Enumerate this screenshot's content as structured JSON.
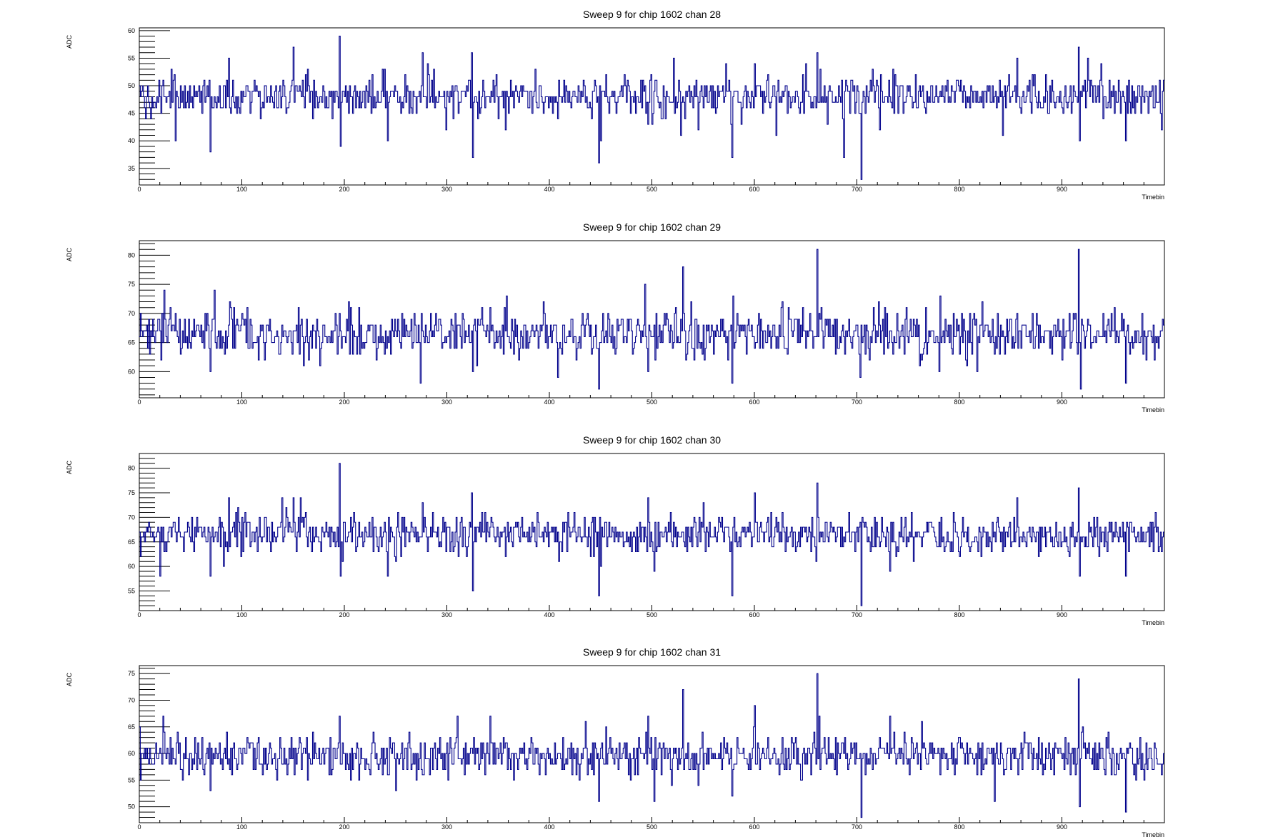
{
  "chart_data": [
    {
      "type": "line",
      "step": true,
      "title": "Sweep 9 for chip 1602 chan 28",
      "xlabel": "Timebin",
      "ylabel": "ADC",
      "xlim": [
        0,
        1000
      ],
      "ylim": [
        32,
        60.5
      ],
      "xticks": [
        "0",
        "100",
        "200",
        "300",
        "400",
        "500",
        "600",
        "700",
        "800",
        "900"
      ],
      "yticks": [
        "35",
        "40",
        "45",
        "50",
        "55",
        "60"
      ],
      "baseline": 48,
      "noise": 1.6,
      "spikes": [
        {
          "x": 69,
          "y": 38
        },
        {
          "x": 87,
          "y": 55
        },
        {
          "x": 150,
          "y": 57
        },
        {
          "x": 195,
          "y": 59
        },
        {
          "x": 196,
          "y": 39
        },
        {
          "x": 242,
          "y": 40
        },
        {
          "x": 276,
          "y": 56
        },
        {
          "x": 324,
          "y": 56
        },
        {
          "x": 325,
          "y": 37
        },
        {
          "x": 448,
          "y": 36
        },
        {
          "x": 450,
          "y": 40
        },
        {
          "x": 521,
          "y": 55
        },
        {
          "x": 578,
          "y": 37
        },
        {
          "x": 600,
          "y": 54
        },
        {
          "x": 661,
          "y": 56
        },
        {
          "x": 687,
          "y": 37
        },
        {
          "x": 704,
          "y": 33
        },
        {
          "x": 735,
          "y": 53
        },
        {
          "x": 842,
          "y": 41
        },
        {
          "x": 856,
          "y": 55
        },
        {
          "x": 916,
          "y": 57
        },
        {
          "x": 917,
          "y": 40
        },
        {
          "x": 962,
          "y": 40
        }
      ]
    },
    {
      "type": "line",
      "step": true,
      "title": "Sweep 9 for chip 1602 chan 29",
      "xlabel": "Timebin",
      "ylabel": "ADC",
      "xlim": [
        0,
        1000
      ],
      "ylim": [
        55.5,
        82.5
      ],
      "xticks": [
        "0",
        "100",
        "200",
        "300",
        "400",
        "500",
        "600",
        "700",
        "800",
        "900"
      ],
      "yticks": [
        "60",
        "65",
        "70",
        "75",
        "80"
      ],
      "baseline": 66.5,
      "noise": 1.9,
      "spikes": [
        {
          "x": 10,
          "y": 63
        },
        {
          "x": 24,
          "y": 74
        },
        {
          "x": 69,
          "y": 60
        },
        {
          "x": 88,
          "y": 72
        },
        {
          "x": 160,
          "y": 61
        },
        {
          "x": 204,
          "y": 72
        },
        {
          "x": 274,
          "y": 58
        },
        {
          "x": 325,
          "y": 60
        },
        {
          "x": 342,
          "y": 71
        },
        {
          "x": 408,
          "y": 59
        },
        {
          "x": 448,
          "y": 57
        },
        {
          "x": 493,
          "y": 75
        },
        {
          "x": 496,
          "y": 60
        },
        {
          "x": 530,
          "y": 78
        },
        {
          "x": 578,
          "y": 58
        },
        {
          "x": 661,
          "y": 81
        },
        {
          "x": 703,
          "y": 59
        },
        {
          "x": 721,
          "y": 72
        },
        {
          "x": 781,
          "y": 73
        },
        {
          "x": 834,
          "y": 63
        },
        {
          "x": 916,
          "y": 81
        },
        {
          "x": 918,
          "y": 57
        },
        {
          "x": 962,
          "y": 58
        }
      ]
    },
    {
      "type": "line",
      "step": true,
      "title": "Sweep 9 for chip 1602 chan 30",
      "xlabel": "Timebin",
      "ylabel": "ADC",
      "xlim": [
        0,
        1000
      ],
      "ylim": [
        51,
        83
      ],
      "xticks": [
        "0",
        "100",
        "200",
        "300",
        "400",
        "500",
        "600",
        "700",
        "800",
        "900"
      ],
      "yticks": [
        "55",
        "60",
        "65",
        "70",
        "75",
        "80"
      ],
      "baseline": 66.5,
      "noise": 1.9,
      "spikes": [
        {
          "x": 69,
          "y": 58
        },
        {
          "x": 87,
          "y": 74
        },
        {
          "x": 150,
          "y": 74
        },
        {
          "x": 195,
          "y": 81
        },
        {
          "x": 196,
          "y": 58
        },
        {
          "x": 242,
          "y": 58
        },
        {
          "x": 276,
          "y": 73
        },
        {
          "x": 324,
          "y": 75
        },
        {
          "x": 325,
          "y": 55
        },
        {
          "x": 448,
          "y": 54
        },
        {
          "x": 450,
          "y": 60
        },
        {
          "x": 496,
          "y": 74
        },
        {
          "x": 502,
          "y": 59
        },
        {
          "x": 578,
          "y": 54
        },
        {
          "x": 600,
          "y": 75
        },
        {
          "x": 661,
          "y": 77
        },
        {
          "x": 704,
          "y": 52
        },
        {
          "x": 856,
          "y": 74
        },
        {
          "x": 916,
          "y": 76
        },
        {
          "x": 917,
          "y": 58
        },
        {
          "x": 962,
          "y": 58
        }
      ]
    },
    {
      "type": "line",
      "step": true,
      "title": "Sweep 9 for chip 1602 chan 31",
      "xlabel": "Timebin",
      "ylabel": "ADC",
      "xlim": [
        0,
        1000
      ],
      "ylim": [
        47,
        76.5
      ],
      "xticks": [
        "0",
        "100",
        "200",
        "300",
        "400",
        "500",
        "600",
        "700",
        "800",
        "900"
      ],
      "yticks": [
        "50",
        "55",
        "60",
        "65",
        "70",
        "75"
      ],
      "baseline": 59.5,
      "noise": 1.8,
      "spikes": [
        {
          "x": 23,
          "y": 67
        },
        {
          "x": 69,
          "y": 53
        },
        {
          "x": 195,
          "y": 67
        },
        {
          "x": 276,
          "y": 56
        },
        {
          "x": 342,
          "y": 67
        },
        {
          "x": 448,
          "y": 51
        },
        {
          "x": 496,
          "y": 67
        },
        {
          "x": 502,
          "y": 51
        },
        {
          "x": 530,
          "y": 72
        },
        {
          "x": 578,
          "y": 52
        },
        {
          "x": 600,
          "y": 69
        },
        {
          "x": 661,
          "y": 75
        },
        {
          "x": 704,
          "y": 48
        },
        {
          "x": 834,
          "y": 51
        },
        {
          "x": 916,
          "y": 74
        },
        {
          "x": 917,
          "y": 50
        },
        {
          "x": 962,
          "y": 49
        }
      ]
    }
  ]
}
